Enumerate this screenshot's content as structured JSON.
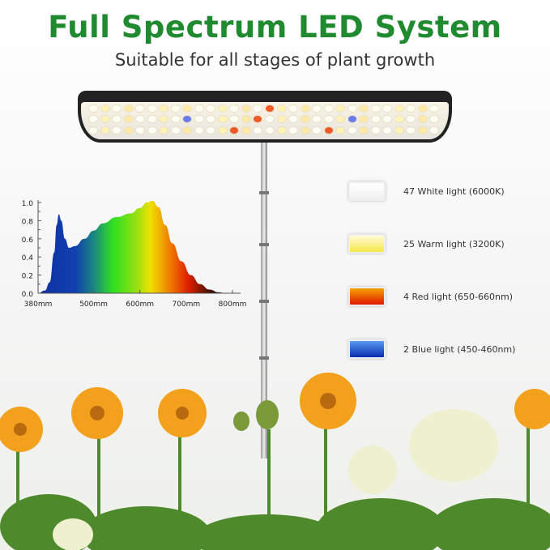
{
  "header": {
    "title": "Full Spectrum LED System",
    "subtitle": "Suitable for all stages of plant growth"
  },
  "chart_data": {
    "type": "area",
    "title": "",
    "xlabel": "",
    "ylabel": "",
    "xlim": [
      380,
      800
    ],
    "ylim": [
      0,
      1.0
    ],
    "x_ticks": [
      "380mm",
      "500mm",
      "600mm",
      "700mm",
      "800mm"
    ],
    "y_ticks": [
      "0.0",
      "0.2",
      "0.4",
      "0.6",
      "0.8",
      "1.0"
    ],
    "x": [
      380,
      395,
      405,
      415,
      420,
      425,
      430,
      438,
      447,
      460,
      480,
      500,
      520,
      550,
      580,
      600,
      615,
      627,
      640,
      655,
      670,
      690,
      710,
      730,
      750,
      770,
      785
    ],
    "values": [
      0,
      0.03,
      0.12,
      0.45,
      0.75,
      0.87,
      0.8,
      0.6,
      0.5,
      0.52,
      0.6,
      0.69,
      0.77,
      0.84,
      0.88,
      0.94,
      1.0,
      1.02,
      0.95,
      0.75,
      0.55,
      0.35,
      0.2,
      0.1,
      0.04,
      0.01,
      0
    ],
    "fill": "visible spectrum gradient",
    "grid": false
  },
  "legend": [
    {
      "label": "47 White light (6000K)",
      "color_top": "#ffffff",
      "color_bottom": "#f0f0f0"
    },
    {
      "label": "25 Warm light (3200K)",
      "color_top": "#fffbd8",
      "color_bottom": "#f5e84a"
    },
    {
      "label": "4 Red light (650-660nm)",
      "color_top": "#f5a000",
      "color_bottom": "#e01800"
    },
    {
      "label": "2 Blue light (450-460nm)",
      "color_top": "#5a9cf0",
      "color_bottom": "#0a2ab0"
    }
  ]
}
